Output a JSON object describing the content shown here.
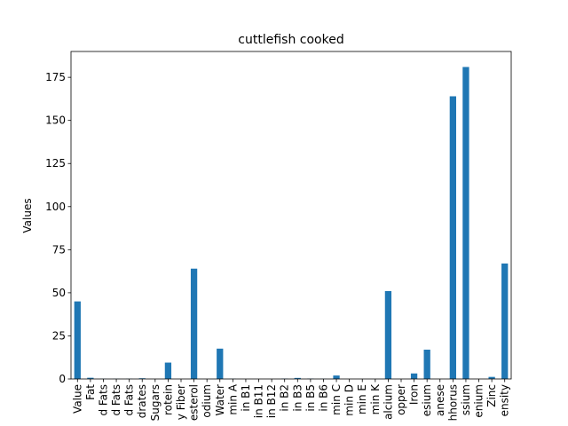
{
  "chart_data": {
    "type": "bar",
    "title": "cuttlefish cooked",
    "xlabel": "",
    "ylabel": "Values",
    "ylim": [
      0,
      190
    ],
    "yticks": [
      0,
      25,
      50,
      75,
      100,
      125,
      150,
      175
    ],
    "legend": "none",
    "grid": false,
    "bar_color": "#1f77b4",
    "categories": [
      "Value",
      "Fat",
      "d Fats",
      "d Fats",
      "d Fats",
      "drates",
      "Sugars",
      "rotein",
      "y Fiber",
      "esterol",
      "odium",
      "Water",
      "min A",
      "in B1",
      "in B11",
      "in B12",
      "in B2",
      "in B3",
      "in B5",
      "in B6",
      "min C",
      "min D",
      "min E",
      "min K",
      "alcium",
      "opper",
      "Iron",
      "esium",
      "anese",
      "hhorus",
      "ssium",
      "enium",
      "Zinc",
      "ensity"
    ],
    "values": [
      45,
      0.7,
      0.1,
      0.1,
      0.1,
      0.4,
      0,
      9.5,
      0,
      64,
      0,
      17.6,
      0.1,
      0,
      0,
      0,
      0.2,
      0.6,
      0.2,
      0.1,
      2,
      0,
      0,
      0,
      51,
      0,
      3.2,
      17,
      0,
      164,
      181,
      0,
      1.2,
      67
    ]
  }
}
